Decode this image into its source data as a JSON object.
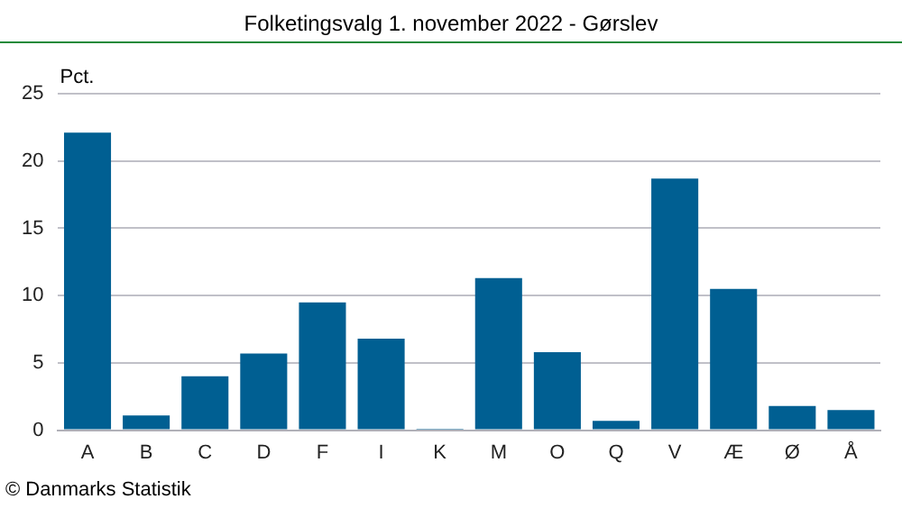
{
  "chart_data": {
    "type": "bar",
    "title": "Folketingsvalg 1. november 2022 - Gørslev",
    "ylabel": "Pct.",
    "categories": [
      "A",
      "B",
      "C",
      "D",
      "F",
      "I",
      "K",
      "M",
      "O",
      "Q",
      "V",
      "Æ",
      "Ø",
      "Å"
    ],
    "values": [
      22.1,
      1.1,
      4.0,
      5.7,
      9.5,
      6.8,
      0.1,
      11.3,
      5.8,
      0.7,
      18.7,
      10.5,
      1.8,
      1.5
    ],
    "color": "#005f92",
    "ylim": [
      0,
      25
    ],
    "yticks": [
      0,
      5,
      10,
      15,
      20,
      25
    ],
    "grid": "y",
    "legend": false,
    "annotations": [
      "© Danmarks Statistik"
    ]
  }
}
